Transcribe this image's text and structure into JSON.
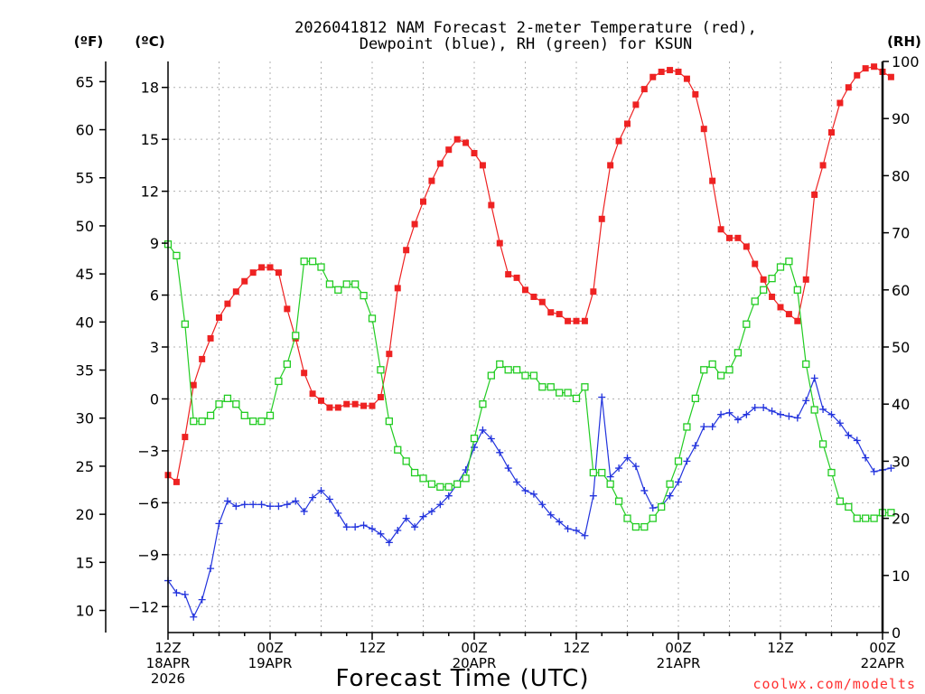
{
  "chart_data": {
    "type": "line",
    "title_lines": [
      "2026041812 NAM Forecast 2-meter Temperature (red),",
      "Dewpoint (blue), RH (green) for KSUN"
    ],
    "unit_labels": {
      "f": "(ºF)",
      "c": "(ºC)",
      "rh": "(RH)"
    },
    "xlabel": "Forecast Time (UTC)",
    "credit": "coolwx.com/modelts",
    "x_range_hours": [
      0,
      84
    ],
    "y_range_celsius": [
      -13.5,
      19.5
    ],
    "y_range_rh": [
      0,
      100
    ],
    "celsius_ticks": [
      -12,
      -9,
      -6,
      -3,
      0,
      3,
      6,
      9,
      12,
      15,
      18
    ],
    "celsius_tick_labels": [
      "−12",
      "−9",
      "−6",
      "−3",
      "0",
      "3",
      "6",
      "9",
      "12",
      "15",
      "18"
    ],
    "fahrenheit_ticks": [
      10,
      15,
      20,
      25,
      30,
      35,
      40,
      45,
      50,
      55,
      60,
      65
    ],
    "rh_ticks": [
      0,
      10,
      20,
      30,
      40,
      50,
      60,
      70,
      80,
      90,
      100
    ],
    "x_ticks": [
      {
        "hour": 0,
        "lines": [
          "12Z",
          "18APR",
          "2026"
        ]
      },
      {
        "hour": 12,
        "lines": [
          "00Z",
          "19APR"
        ]
      },
      {
        "hour": 24,
        "lines": [
          "12Z"
        ]
      },
      {
        "hour": 36,
        "lines": [
          "00Z",
          "20APR"
        ]
      },
      {
        "hour": 48,
        "lines": [
          "12Z"
        ]
      },
      {
        "hour": 60,
        "lines": [
          "00Z",
          "21APR"
        ]
      },
      {
        "hour": 72,
        "lines": [
          "12Z"
        ]
      },
      {
        "hour": 84,
        "lines": [
          "00Z",
          "22APR"
        ]
      }
    ],
    "series": [
      {
        "name": "Temperature",
        "units": "C",
        "color": "#ee2222",
        "marker": "filled-square",
        "values": [
          -4.4,
          -4.8,
          -2.2,
          0.8,
          2.3,
          3.5,
          4.7,
          5.5,
          6.2,
          6.8,
          7.3,
          7.6,
          7.6,
          7.3,
          5.2,
          3.5,
          1.5,
          0.3,
          -0.1,
          -0.5,
          -0.5,
          -0.3,
          -0.3,
          -0.4,
          -0.4,
          0.1,
          2.6,
          6.4,
          8.6,
          10.1,
          11.4,
          12.6,
          13.6,
          14.4,
          15.0,
          14.8,
          14.2,
          13.5,
          11.2,
          9.0,
          7.2,
          7.0,
          6.3,
          5.9,
          5.6,
          5.0,
          4.9,
          4.5,
          4.5,
          4.5,
          6.2,
          10.4,
          13.5,
          14.9,
          15.9,
          17.0,
          17.9,
          18.6,
          18.9,
          19.0,
          18.9,
          18.5,
          17.6,
          15.6,
          12.6,
          9.8,
          9.3,
          9.3,
          8.8,
          7.8,
          6.9,
          5.9,
          5.3,
          4.9,
          4.5,
          6.9,
          11.8,
          13.5,
          15.4,
          17.1,
          18.0,
          18.7,
          19.1,
          19.2,
          18.9,
          18.6
        ]
      },
      {
        "name": "Dewpoint",
        "units": "C",
        "color": "#2233dd",
        "marker": "plus",
        "values": [
          -10.5,
          -11.2,
          -11.3,
          -12.6,
          -11.6,
          -9.8,
          -7.2,
          -5.9,
          -6.2,
          -6.1,
          -6.1,
          -6.1,
          -6.2,
          -6.2,
          -6.1,
          -5.9,
          -6.5,
          -5.7,
          -5.3,
          -5.8,
          -6.6,
          -7.4,
          -7.4,
          -7.3,
          -7.5,
          -7.8,
          -8.3,
          -7.6,
          -6.9,
          -7.4,
          -6.8,
          -6.5,
          -6.1,
          -5.6,
          -4.9,
          -4.1,
          -2.8,
          -1.8,
          -2.3,
          -3.1,
          -4.0,
          -4.8,
          -5.3,
          -5.5,
          -6.1,
          -6.7,
          -7.1,
          -7.5,
          -7.6,
          -7.9,
          -5.6,
          0.1,
          -4.5,
          -4.0,
          -3.4,
          -3.9,
          -5.3,
          -6.3,
          -6.2,
          -5.6,
          -4.8,
          -3.6,
          -2.7,
          -1.6,
          -1.6,
          -0.9,
          -0.8,
          -1.2,
          -0.9,
          -0.5,
          -0.5,
          -0.7,
          -0.9,
          -1.0,
          -1.1,
          -0.1,
          1.2,
          -0.6,
          -0.9,
          -1.4,
          -2.1,
          -2.4,
          -3.4,
          -4.2,
          -4.1,
          -4.0
        ]
      },
      {
        "name": "RH",
        "units": "%",
        "color": "#22cc22",
        "marker": "open-square",
        "values": [
          68,
          66,
          54,
          37,
          37,
          38,
          40,
          41,
          40,
          38,
          37,
          37,
          38,
          44,
          47,
          52,
          65,
          65,
          64,
          61,
          60,
          61,
          61,
          59,
          55,
          46,
          37,
          32,
          30,
          28,
          27,
          26,
          25.5,
          25.5,
          26,
          27,
          34,
          40,
          45,
          47,
          46,
          46,
          45,
          45,
          43,
          43,
          42,
          42,
          41,
          43,
          28,
          28,
          26,
          23,
          20,
          18.5,
          18.5,
          20,
          22,
          26,
          30,
          36,
          41,
          46,
          47,
          45,
          46,
          49,
          54,
          58,
          60,
          62,
          64,
          65,
          60,
          47,
          39,
          33,
          28,
          23,
          22,
          20,
          20,
          20,
          21,
          21
        ]
      }
    ]
  }
}
